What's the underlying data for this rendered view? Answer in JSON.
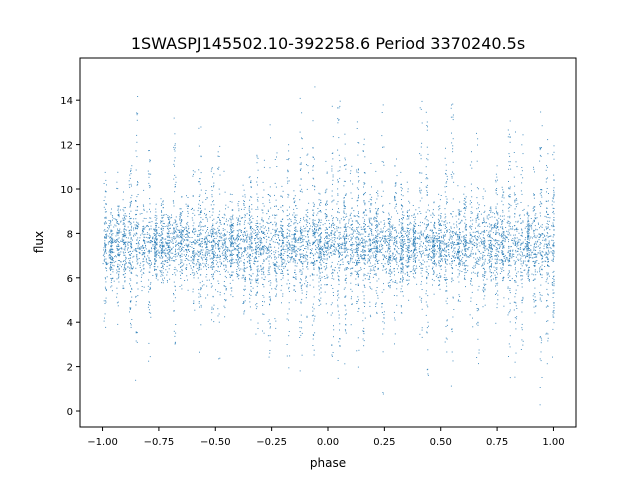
{
  "chart_data": {
    "type": "scatter",
    "title": "1SWASPJ145502.10-392258.6 Period 3370240.5s",
    "xlabel": "phase",
    "ylabel": "flux",
    "xlim": [
      -1.1,
      1.1
    ],
    "ylim": [
      -0.72,
      15.9
    ],
    "xticks": [
      -1.0,
      -0.75,
      -0.5,
      -0.25,
      0.0,
      0.25,
      0.5,
      0.75,
      1.0
    ],
    "xtick_labels": [
      "−1.00",
      "−0.75",
      "−0.50",
      "−0.25",
      "0.00",
      "0.25",
      "0.50",
      "0.75",
      "1.00"
    ],
    "yticks": [
      0,
      2,
      4,
      6,
      8,
      10,
      12,
      14
    ],
    "ytick_labels": [
      "0",
      "2",
      "4",
      "6",
      "8",
      "10",
      "12",
      "14"
    ],
    "grid": false,
    "marker_color": "#1f77b4",
    "point_distribution": {
      "x_range": [
        -1.0,
        1.0
      ],
      "y_range": [
        0,
        15
      ],
      "core_band": [
        5.5,
        9.5
      ],
      "median_flux": 7.5,
      "streak_spacing_phase": 0.028
    }
  }
}
